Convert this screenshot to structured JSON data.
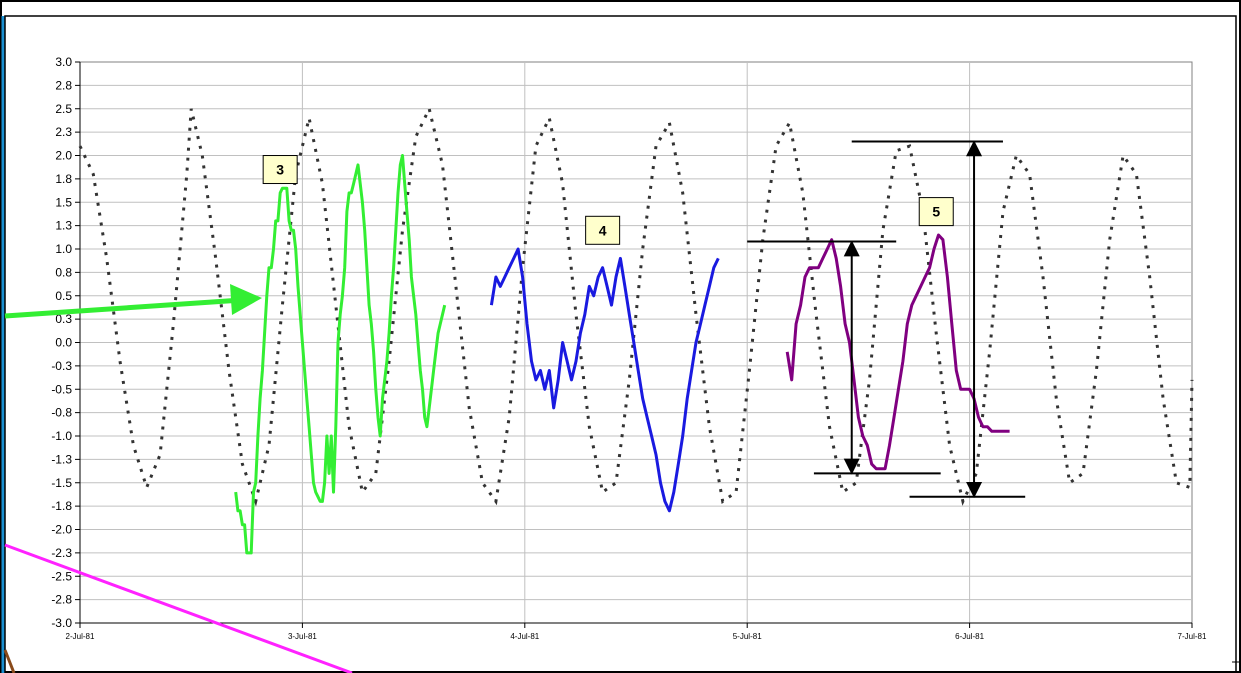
{
  "colors": {
    "reference": "#333333",
    "segment_3": "#33ee33",
    "segment_4": "#1a1ae0",
    "segment_5": "#800080",
    "pointer_green": "#33ee33",
    "pointer_magenta": "#ff22ff",
    "callout_fill": "#ffffcc",
    "grid": "#c0c0c0",
    "frame_accent": "#1a8fd0"
  },
  "chart_data": {
    "type": "line",
    "title": "",
    "xlabel": "",
    "ylabel": "",
    "x_ticks": [
      "2-Jul-81",
      "3-Jul-81",
      "4-Jul-81",
      "5-Jul-81",
      "6-Jul-81",
      "7-Jul-81"
    ],
    "y_ticks": [
      "3.0",
      "2.8",
      "2.5",
      "2.3",
      "2.0",
      "1.8",
      "1.5",
      "1.3",
      "1.0",
      "0.8",
      "0.5",
      "0.3",
      "0.0",
      "-0.3",
      "-0.5",
      "-0.8",
      "-1.0",
      "-1.3",
      "-1.5",
      "-1.8",
      "-2.0",
      "-2.3",
      "-2.5",
      "-2.8",
      "-3.0"
    ],
    "xlim": [
      "2-Jul-81",
      "7-Jul-81"
    ],
    "ylim": [
      -3.0,
      3.0
    ],
    "grid": true,
    "legend": "none",
    "annotations": [
      {
        "label": "3",
        "x": 2.9,
        "y": 1.85
      },
      {
        "label": "4",
        "x": 4.35,
        "y": 1.2
      },
      {
        "label": "5",
        "x": 5.85,
        "y": 1.4
      }
    ],
    "series": [
      {
        "style": "dotted",
        "x": [
          2.0,
          2.06,
          2.12,
          2.18,
          2.24,
          2.3,
          2.36,
          2.42,
          2.48,
          2.5,
          2.55,
          2.61,
          2.67,
          2.73,
          2.79,
          2.85,
          2.91,
          2.97,
          3.03,
          3.09,
          3.15,
          3.21,
          3.27,
          3.33,
          3.39,
          3.45,
          3.51,
          3.57,
          3.63,
          3.69,
          3.75,
          3.81,
          3.87,
          3.93,
          3.99,
          4.05,
          4.11,
          4.17,
          4.23,
          4.29,
          4.35,
          4.41,
          4.47,
          4.53,
          4.59,
          4.65,
          4.71,
          4.77,
          4.83,
          4.89,
          4.95,
          5.01,
          5.07,
          5.13,
          5.19,
          5.25,
          5.31,
          5.37,
          5.43,
          5.49,
          5.55,
          5.61,
          5.67,
          5.73,
          5.79,
          5.85,
          5.91,
          5.97,
          6.03,
          6.09,
          6.15,
          6.21,
          6.27,
          6.33,
          6.39,
          6.45,
          6.51,
          6.57,
          6.63,
          6.69,
          6.75,
          6.81,
          6.87,
          6.93,
          6.99,
          7.0
        ],
        "y": [
          2.1,
          1.8,
          0.9,
          -0.2,
          -1.1,
          -1.55,
          -1.2,
          0.2,
          1.8,
          2.5,
          2.0,
          0.9,
          -0.3,
          -1.3,
          -1.7,
          -1.1,
          0.4,
          1.8,
          2.4,
          1.7,
          0.4,
          -0.9,
          -1.6,
          -1.4,
          -0.2,
          1.2,
          2.2,
          2.5,
          1.9,
          0.6,
          -0.7,
          -1.5,
          -1.7,
          -0.8,
          0.8,
          2.1,
          2.4,
          1.7,
          0.3,
          -0.9,
          -1.6,
          -1.5,
          -0.4,
          1.0,
          2.1,
          2.35,
          1.6,
          0.3,
          -0.9,
          -1.7,
          -1.6,
          -0.3,
          1.1,
          2.1,
          2.35,
          1.6,
          0.3,
          -0.9,
          -1.6,
          -1.5,
          -0.4,
          1.2,
          2.05,
          2.1,
          1.4,
          0.1,
          -1.1,
          -1.7,
          -1.4,
          -0.1,
          1.4,
          2.0,
          1.8,
          0.7,
          -0.6,
          -1.5,
          -1.4,
          -0.3,
          1.1,
          2.0,
          1.8,
          0.7,
          -0.6,
          -1.5,
          -1.55,
          -0.4
        ]
      },
      {
        "style": "solid",
        "color_key": "segment_3",
        "x": [
          2.7,
          2.71,
          2.72,
          2.73,
          2.74,
          2.75,
          2.76,
          2.77,
          2.78,
          2.79,
          2.8,
          2.81,
          2.82,
          2.83,
          2.84,
          2.85,
          2.86,
          2.87,
          2.88,
          2.89,
          2.9,
          2.91,
          2.92,
          2.93,
          2.94,
          2.95,
          2.96,
          2.97,
          2.98,
          2.99,
          3.0,
          3.01,
          3.02,
          3.03,
          3.04,
          3.05,
          3.06,
          3.07,
          3.08,
          3.09,
          3.1,
          3.11,
          3.12,
          3.13,
          3.14,
          3.15,
          3.16,
          3.17,
          3.18,
          3.19,
          3.2,
          3.21,
          3.22,
          3.23,
          3.24,
          3.25,
          3.26,
          3.27,
          3.28,
          3.29,
          3.3,
          3.31,
          3.32,
          3.33,
          3.34,
          3.35,
          3.36,
          3.37,
          3.38,
          3.39,
          3.4,
          3.41,
          3.42,
          3.43,
          3.44,
          3.45,
          3.46,
          3.47,
          3.48,
          3.49,
          3.5,
          3.51,
          3.52,
          3.53,
          3.54,
          3.55,
          3.56,
          3.57,
          3.58,
          3.59,
          3.6,
          3.61,
          3.62,
          3.63,
          3.64
        ],
        "y": [
          -1.6,
          -1.8,
          -1.8,
          -1.95,
          -1.95,
          -2.25,
          -2.25,
          -2.25,
          -1.6,
          -1.5,
          -1.0,
          -0.6,
          -0.3,
          0.1,
          0.5,
          0.8,
          0.8,
          1.0,
          1.3,
          1.3,
          1.6,
          1.65,
          1.65,
          1.65,
          1.3,
          1.2,
          1.2,
          1.0,
          0.6,
          0.3,
          0.0,
          -0.3,
          -0.6,
          -0.9,
          -1.2,
          -1.5,
          -1.6,
          -1.65,
          -1.7,
          -1.7,
          -1.5,
          -1.0,
          -1.4,
          -1.0,
          -1.6,
          -0.9,
          0.0,
          0.3,
          0.5,
          0.8,
          1.4,
          1.6,
          1.6,
          1.7,
          1.8,
          1.9,
          1.7,
          1.5,
          1.2,
          0.8,
          0.4,
          0.2,
          -0.1,
          -0.5,
          -0.8,
          -1.0,
          -0.6,
          -0.4,
          -0.2,
          0.1,
          0.5,
          0.8,
          1.2,
          1.6,
          1.9,
          2.0,
          1.7,
          1.4,
          1.1,
          0.7,
          0.5,
          0.3,
          0.0,
          -0.3,
          -0.5,
          -0.8,
          -0.9,
          -0.7,
          -0.5,
          -0.3,
          -0.1,
          0.1,
          0.2,
          0.3,
          0.4
        ]
      },
      {
        "style": "solid",
        "color_key": "segment_4",
        "x": [
          3.85,
          3.87,
          3.89,
          3.91,
          3.93,
          3.95,
          3.97,
          3.99,
          4.01,
          4.03,
          4.05,
          4.07,
          4.09,
          4.11,
          4.13,
          4.15,
          4.17,
          4.19,
          4.21,
          4.23,
          4.25,
          4.27,
          4.29,
          4.31,
          4.33,
          4.35,
          4.37,
          4.39,
          4.41,
          4.43,
          4.45,
          4.47,
          4.49,
          4.51,
          4.53,
          4.55,
          4.57,
          4.59,
          4.61,
          4.63,
          4.65,
          4.67,
          4.69,
          4.71,
          4.73,
          4.75,
          4.77,
          4.79,
          4.81,
          4.83,
          4.85,
          4.87
        ],
        "y": [
          0.4,
          0.7,
          0.6,
          0.7,
          0.8,
          0.9,
          1.0,
          0.7,
          0.2,
          -0.2,
          -0.4,
          -0.3,
          -0.5,
          -0.3,
          -0.7,
          -0.4,
          0.0,
          -0.2,
          -0.4,
          -0.2,
          0.1,
          0.3,
          0.6,
          0.5,
          0.7,
          0.8,
          0.6,
          0.4,
          0.7,
          0.9,
          0.6,
          0.3,
          0.0,
          -0.3,
          -0.6,
          -0.8,
          -1.0,
          -1.2,
          -1.5,
          -1.7,
          -1.8,
          -1.6,
          -1.3,
          -1.0,
          -0.6,
          -0.3,
          0.0,
          0.2,
          0.4,
          0.6,
          0.8,
          0.9
        ]
      },
      {
        "style": "solid",
        "color_key": "segment_5",
        "x": [
          5.18,
          5.2,
          5.22,
          5.24,
          5.26,
          5.28,
          5.3,
          5.32,
          5.34,
          5.36,
          5.38,
          5.4,
          5.42,
          5.44,
          5.46,
          5.48,
          5.5,
          5.52,
          5.54,
          5.56,
          5.58,
          5.6,
          5.62,
          5.64,
          5.66,
          5.68,
          5.7,
          5.72,
          5.74,
          5.76,
          5.78,
          5.8,
          5.82,
          5.84,
          5.86,
          5.88,
          5.9,
          5.92,
          5.94,
          5.96,
          5.98,
          6.0,
          6.02,
          6.04,
          6.06,
          6.08,
          6.1,
          6.12,
          6.14,
          6.16,
          6.18
        ],
        "y": [
          -0.1,
          -0.4,
          0.2,
          0.4,
          0.7,
          0.8,
          0.8,
          0.8,
          0.9,
          1.0,
          1.1,
          0.9,
          0.6,
          0.2,
          0.0,
          -0.4,
          -0.8,
          -1.0,
          -1.1,
          -1.3,
          -1.35,
          -1.35,
          -1.35,
          -1.1,
          -0.8,
          -0.5,
          -0.2,
          0.2,
          0.4,
          0.5,
          0.6,
          0.7,
          0.8,
          1.0,
          1.15,
          1.1,
          0.7,
          0.2,
          -0.3,
          -0.5,
          -0.5,
          -0.5,
          -0.6,
          -0.8,
          -0.9,
          -0.9,
          -0.95,
          -0.95,
          -0.95,
          -0.95,
          -0.95
        ]
      }
    ],
    "reference_lines": [
      {
        "x1": 5.0,
        "x2": 5.67,
        "y": 1.08
      },
      {
        "x1": 5.3,
        "x2": 5.87,
        "y": -1.4
      },
      {
        "x1": 5.47,
        "x2": 6.15,
        "y": 2.15
      },
      {
        "x1": 5.73,
        "x2": 6.25,
        "y": -1.65
      }
    ],
    "double_arrows": [
      {
        "x": 5.47,
        "y1": 1.08,
        "y2": -1.4
      },
      {
        "x": 6.02,
        "y1": 2.15,
        "y2": -1.65
      }
    ]
  }
}
